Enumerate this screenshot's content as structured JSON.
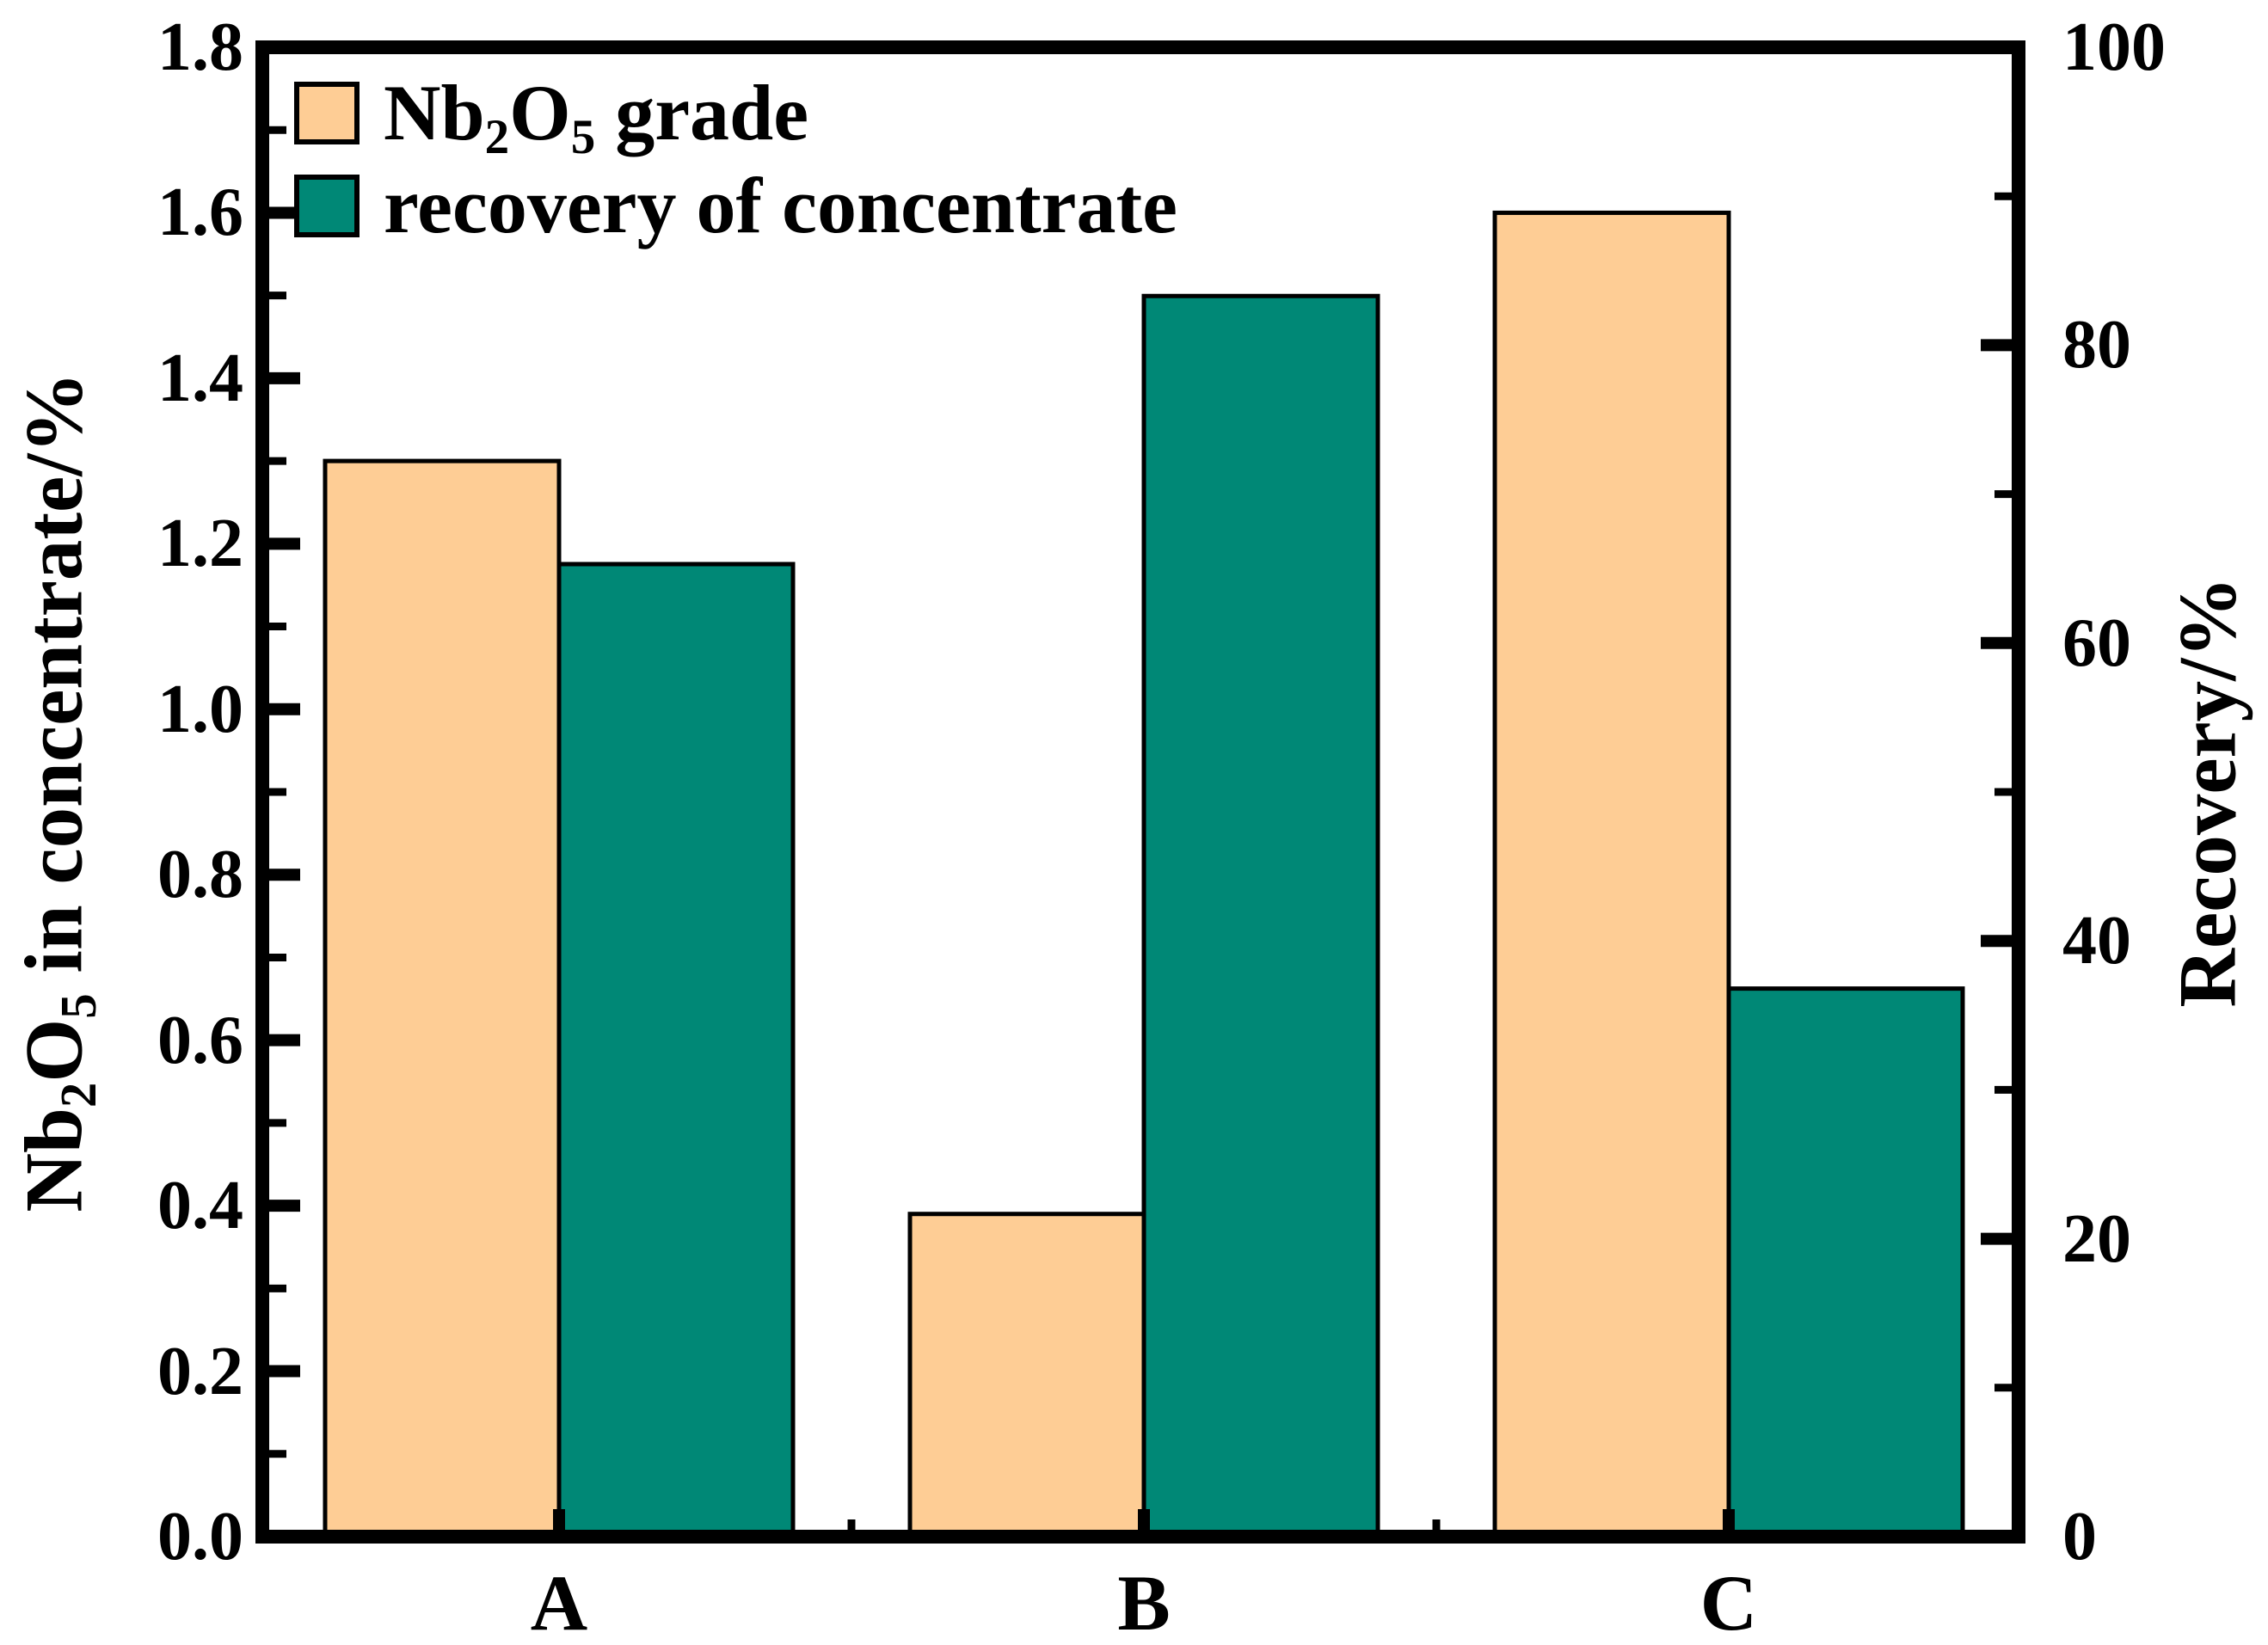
{
  "figure_title": "",
  "chart_data": {
    "type": "bar",
    "categories": [
      "A",
      "B",
      "C"
    ],
    "series": [
      {
        "name": "Nb₂O₅ grade",
        "axis": "left",
        "color": "#FECD95",
        "values": [
          1.3,
          0.39,
          1.6
        ]
      },
      {
        "name": "recovery of concentrate",
        "axis": "right",
        "color": "#008876",
        "values": [
          65.3,
          83.3,
          36.8
        ]
      }
    ],
    "left_axis": {
      "label": "Nb₂O₅ in concentrate/%",
      "min": 0.0,
      "max": 1.8,
      "major_step": 0.2,
      "minor_step": 0.1,
      "tick_values": [
        0.0,
        0.2,
        0.4,
        0.6,
        0.8,
        1.0,
        1.2,
        1.4,
        1.6,
        1.8
      ],
      "tick_labels": [
        "0.0",
        "0.2",
        "0.4",
        "0.6",
        "0.8",
        "1.0",
        "1.2",
        "1.4",
        "1.6",
        "1.8"
      ]
    },
    "right_axis": {
      "label": "Recovery/%",
      "min": 0,
      "max": 100,
      "major_step": 20,
      "minor_step": 10,
      "tick_values": [
        0,
        20,
        40,
        60,
        80,
        100
      ],
      "tick_labels": [
        "0",
        "20",
        "40",
        "60",
        "80",
        "100"
      ]
    },
    "x_axis": {
      "tick_labels": [
        "A",
        "B",
        "C"
      ]
    },
    "legend": {
      "position": "top-left",
      "entries": [
        "Nb₂O₅ grade",
        "recovery of concentrate"
      ]
    },
    "grid": false,
    "bar_outline_color": "#000000",
    "frame_color": "#000000",
    "background_color": "#FFFFFF"
  }
}
